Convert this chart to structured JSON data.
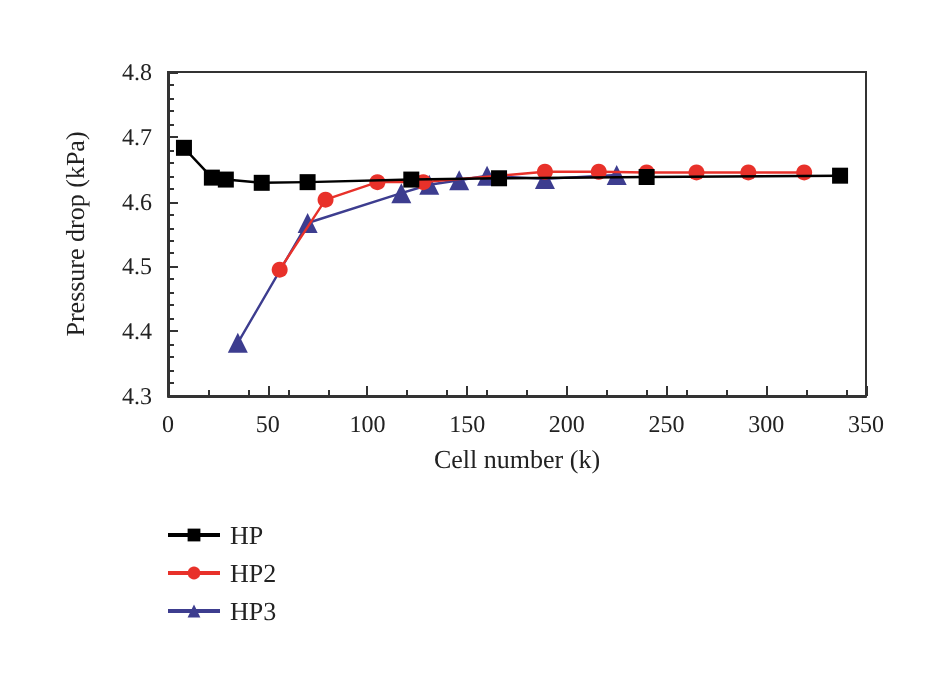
{
  "chart_data": {
    "type": "line",
    "xlabel": "Cell number (k)",
    "ylabel": "Pressure drop (kPa)",
    "xlim": [
      0,
      350
    ],
    "xticks": [
      0,
      50,
      100,
      150,
      200,
      250,
      300,
      350
    ],
    "ylim": [
      4.3,
      4.8
    ],
    "yticks": [
      4.3,
      4.4,
      4.5,
      4.6,
      4.7,
      4.8
    ],
    "grid": false,
    "legend": "bottom left",
    "series": [
      {
        "name": "HP",
        "color": "#000000",
        "marker": "square",
        "x": [
          8,
          22,
          29,
          47,
          70,
          122,
          166,
          240,
          337
        ],
        "values": [
          4.683,
          4.637,
          4.634,
          4.629,
          4.63,
          4.634,
          4.636,
          4.638,
          4.64
        ]
      },
      {
        "name": "HP2",
        "color": "#e8312a",
        "marker": "circle",
        "x": [
          56,
          79,
          105,
          128,
          189,
          216,
          240,
          265,
          291,
          319
        ],
        "values": [
          4.495,
          4.603,
          4.63,
          4.63,
          4.646,
          4.646,
          4.645,
          4.645,
          4.645,
          4.645
        ]
      },
      {
        "name": "HP3",
        "color": "#3d3d8f",
        "marker": "triangle",
        "x": [
          35,
          70,
          117,
          131,
          146,
          160,
          189,
          225
        ],
        "values": [
          4.382,
          4.567,
          4.613,
          4.626,
          4.633,
          4.64,
          4.635,
          4.641
        ]
      }
    ]
  }
}
